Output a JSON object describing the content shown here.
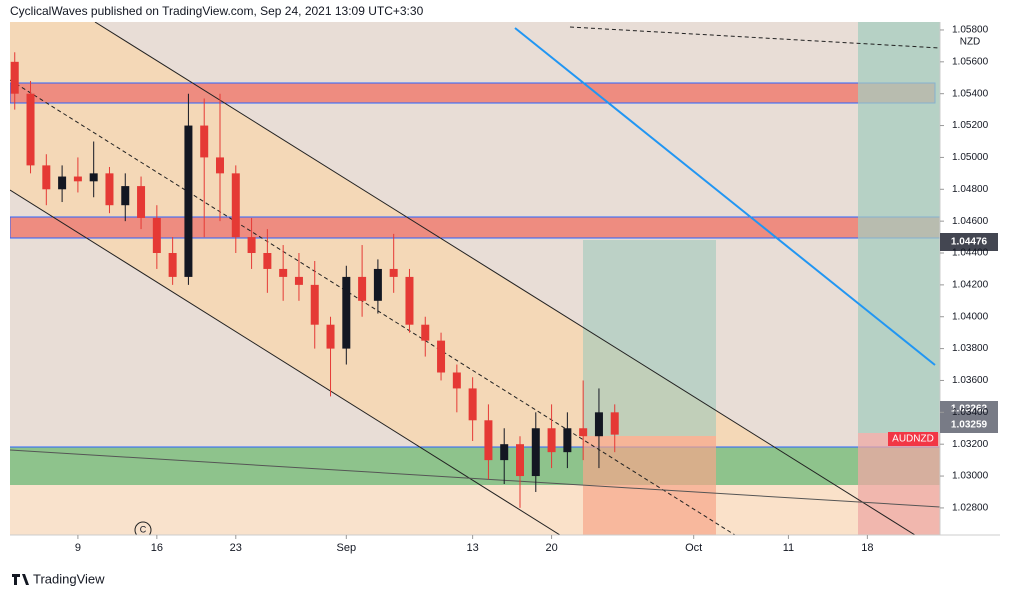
{
  "header": "CyclicalWaves published on TradingView.com, Sep 24, 2021 13:09 UTC+3:30",
  "footer": "TradingView",
  "chart_data": {
    "type": "candlestick",
    "symbol": "AUDNZD",
    "currency": "NZD",
    "marker": "C",
    "price_labels": [
      "1.04476",
      "1.03262",
      "1.03259"
    ],
    "up_color": "#131722",
    "down_color": "#e53935",
    "x": [
      -4,
      -3,
      -2,
      -1,
      0,
      1,
      2,
      3,
      4,
      5,
      6,
      7,
      8,
      9,
      10,
      11,
      12,
      13,
      14,
      15,
      16,
      17,
      18,
      19,
      20,
      21,
      22,
      23,
      24,
      25,
      26,
      27,
      28,
      29,
      30,
      31,
      32,
      33,
      34
    ],
    "open": [
      1.056,
      1.054,
      1.0495,
      1.048,
      1.0488,
      1.0485,
      1.049,
      1.047,
      1.0482,
      1.0462,
      1.044,
      1.0425,
      1.052,
      1.05,
      1.049,
      1.045,
      1.044,
      1.043,
      1.0425,
      1.042,
      1.0395,
      1.038,
      1.0425,
      1.041,
      1.043,
      1.0425,
      1.0395,
      1.0385,
      1.0365,
      1.0355,
      1.0335,
      1.031,
      1.032,
      1.03,
      1.033,
      1.0315,
      1.033,
      1.0325,
      1.034
    ],
    "high": [
      1.0566,
      1.0548,
      1.0502,
      1.0495,
      1.05,
      1.051,
      1.0494,
      1.049,
      1.0488,
      1.047,
      1.045,
      1.054,
      1.0537,
      1.054,
      1.0495,
      1.0462,
      1.0455,
      1.0445,
      1.044,
      1.0435,
      1.04,
      1.0432,
      1.0445,
      1.0436,
      1.0452,
      1.043,
      1.04,
      1.039,
      1.037,
      1.0362,
      1.0345,
      1.033,
      1.0325,
      1.034,
      1.0345,
      1.034,
      1.036,
      1.0355,
      1.0345
    ],
    "low": [
      1.053,
      1.049,
      1.047,
      1.0472,
      1.0478,
      1.0475,
      1.0465,
      1.046,
      1.0455,
      1.043,
      1.042,
      1.042,
      1.045,
      1.046,
      1.044,
      1.043,
      1.0415,
      1.041,
      1.041,
      1.038,
      1.035,
      1.037,
      1.04,
      1.0402,
      1.0415,
      1.039,
      1.0375,
      1.036,
      1.034,
      1.0322,
      1.0298,
      1.0295,
      1.028,
      1.029,
      1.0305,
      1.0305,
      1.031,
      1.0305,
      1.0315
    ],
    "close": [
      1.054,
      1.0495,
      1.048,
      1.0488,
      1.0485,
      1.049,
      1.047,
      1.0482,
      1.0462,
      1.044,
      1.0425,
      1.052,
      1.05,
      1.049,
      1.045,
      1.044,
      1.043,
      1.0425,
      1.042,
      1.0395,
      1.038,
      1.0425,
      1.041,
      1.043,
      1.0425,
      1.0395,
      1.0385,
      1.0365,
      1.0355,
      1.0335,
      1.031,
      1.032,
      1.03,
      1.033,
      1.0315,
      1.033,
      1.0325,
      1.034,
      1.0326
    ],
    "xlim": [
      -4.3,
      54.6
    ],
    "xticks": [
      {
        "value": 0,
        "label": "9"
      },
      {
        "value": 5,
        "label": "16"
      },
      {
        "value": 10,
        "label": "23"
      },
      {
        "value": 17,
        "label": "Sep"
      },
      {
        "value": 25,
        "label": "13"
      },
      {
        "value": 30,
        "label": "20"
      },
      {
        "value": 39,
        "label": "Oct"
      },
      {
        "value": 45,
        "label": "11"
      },
      {
        "value": 50,
        "label": "18"
      }
    ],
    "ylim": [
      1.0263,
      1.0585
    ],
    "yticks": [
      {
        "value": 1.028,
        "label": "1.02800"
      },
      {
        "value": 1.03,
        "label": "1.03000"
      },
      {
        "value": 1.032,
        "label": "1.03200"
      },
      {
        "value": 1.034,
        "label": "1.03400"
      },
      {
        "value": 1.036,
        "label": "1.03600"
      },
      {
        "value": 1.038,
        "label": "1.03800"
      },
      {
        "value": 1.04,
        "label": "1.04000"
      },
      {
        "value": 1.042,
        "label": "1.04200"
      },
      {
        "value": 1.044,
        "label": "1.04400"
      },
      {
        "value": 1.046,
        "label": "1.04600"
      },
      {
        "value": 1.048,
        "label": "1.04800"
      },
      {
        "value": 1.05,
        "label": "1.05000"
      },
      {
        "value": 1.052,
        "label": "1.05200"
      },
      {
        "value": 1.054,
        "label": "1.05400"
      },
      {
        "value": 1.056,
        "label": "1.05600"
      },
      {
        "value": 1.058,
        "label": "1.05800"
      }
    ]
  }
}
